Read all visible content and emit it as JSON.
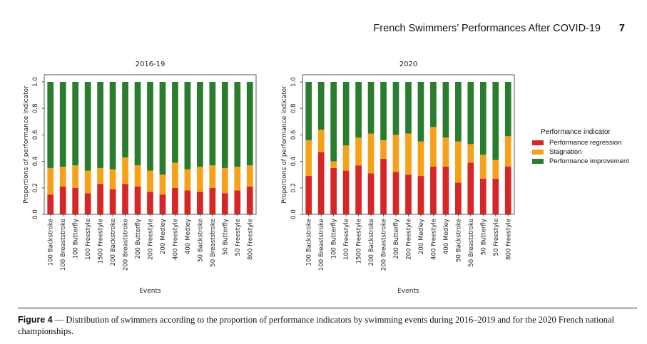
{
  "header": {
    "title": "French Swimmers’ Performances After COVID-19",
    "page_number": "7"
  },
  "legend": {
    "title": "Performance indicator",
    "items": [
      {
        "label": "Performance regression",
        "color": "#d62728"
      },
      {
        "label": "Stagnation",
        "color": "#f5a21a"
      },
      {
        "label": "Performance improvement",
        "color": "#2a7d2e"
      }
    ]
  },
  "caption": {
    "label": "Figure 4",
    "dash": " — ",
    "text": " Distribution of swimmers according to the proportion of performance indicators by swimming events during 2016–2019 and for the 2020 French national championships."
  },
  "chart_data": [
    {
      "type": "bar",
      "stacked": true,
      "title": "2016-19",
      "xlabel": "Events",
      "ylabel": "Proportions of performance indicator",
      "ylim": [
        0,
        1.0
      ],
      "yticks": [
        "0.0",
        "0.2",
        "0.4",
        "0.6",
        "0.8",
        "1.0"
      ],
      "categories": [
        "100 Backstroke",
        "100 Breaststroke",
        "100 Butterfly",
        "100 Freestyle",
        "1500 Freestyle",
        "200 Backstroke",
        "200 Breaststroke",
        "200 Butterfly",
        "200 Freestyle",
        "200 Medley",
        "400 Freestyle",
        "400 Medley",
        "50 Backstroke",
        "50 Breaststroke",
        "50 Butterfly",
        "50 Freestyle",
        "800 Freestyle"
      ],
      "series": [
        {
          "name": "Performance regression",
          "color": "#d62728",
          "values": [
            0.15,
            0.21,
            0.2,
            0.16,
            0.23,
            0.19,
            0.23,
            0.21,
            0.17,
            0.15,
            0.2,
            0.18,
            0.17,
            0.2,
            0.16,
            0.18,
            0.21
          ]
        },
        {
          "name": "Stagnation",
          "color": "#f5a21a",
          "values": [
            0.2,
            0.15,
            0.17,
            0.17,
            0.12,
            0.15,
            0.2,
            0.16,
            0.16,
            0.15,
            0.19,
            0.16,
            0.19,
            0.17,
            0.19,
            0.18,
            0.16
          ]
        },
        {
          "name": "Performance improvement",
          "color": "#2a7d2e",
          "values": [
            0.65,
            0.64,
            0.63,
            0.67,
            0.65,
            0.66,
            0.57,
            0.63,
            0.67,
            0.7,
            0.61,
            0.66,
            0.64,
            0.63,
            0.65,
            0.64,
            0.63
          ]
        }
      ]
    },
    {
      "type": "bar",
      "stacked": true,
      "title": "2020",
      "xlabel": "Events",
      "ylabel": "Proportions of performance indicator",
      "ylim": [
        0,
        1.0
      ],
      "yticks": [
        "0.0",
        "0.2",
        "0.4",
        "0.6",
        "0.8",
        "1.0"
      ],
      "categories": [
        "100 Backstroke",
        "100 Breaststroke",
        "100 Butterfly",
        "100 Freestyle",
        "1500 Freestyle",
        "200 Backstroke",
        "200 Breaststroke",
        "200 Butterfly",
        "200 Freestyle",
        "200 Medley",
        "400 Freestyle",
        "400 Medley",
        "50 Backstroke",
        "50 Breaststroke",
        "50 Butterfly",
        "50 Freestyle",
        "800 Freestyle"
      ],
      "series": [
        {
          "name": "Performance regression",
          "color": "#d62728",
          "values": [
            0.29,
            0.47,
            0.35,
            0.33,
            0.37,
            0.31,
            0.42,
            0.32,
            0.3,
            0.29,
            0.36,
            0.36,
            0.24,
            0.39,
            0.27,
            0.27,
            0.36
          ]
        },
        {
          "name": "Stagnation",
          "color": "#f5a21a",
          "values": [
            0.27,
            0.17,
            0.05,
            0.19,
            0.21,
            0.3,
            0.14,
            0.28,
            0.31,
            0.26,
            0.3,
            0.22,
            0.31,
            0.14,
            0.18,
            0.14,
            0.23
          ]
        },
        {
          "name": "Performance improvement",
          "color": "#2a7d2e",
          "values": [
            0.44,
            0.36,
            0.6,
            0.48,
            0.42,
            0.39,
            0.44,
            0.4,
            0.39,
            0.45,
            0.34,
            0.42,
            0.45,
            0.47,
            0.55,
            0.59,
            0.41
          ]
        }
      ]
    }
  ]
}
